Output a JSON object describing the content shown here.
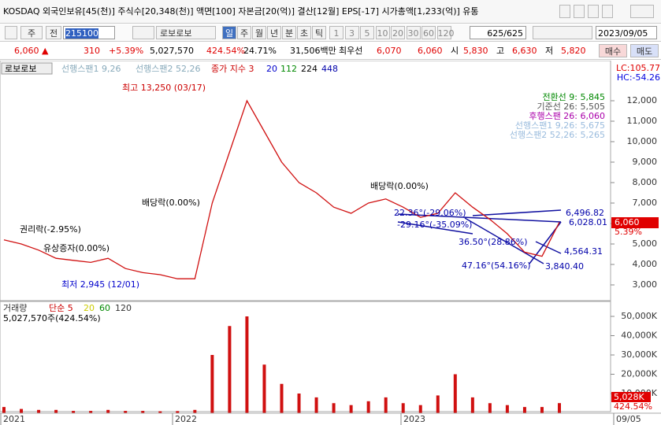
{
  "title_bar": {
    "text": "KOSDAQ 외국인보유[45(천)] 주식수[20,348(천)] 액면[100] 자본금[20(억)] 결산[12월] EPS[-17] 시가총액[1,233(억)] 유통"
  },
  "toolbar": {
    "type_select": "주",
    "prefix": "전",
    "code": "215100",
    "name": "로보로보",
    "periods": [
      "일",
      "주",
      "월",
      "년",
      "분",
      "초",
      "틱"
    ],
    "intervals": [
      "1",
      "3",
      "5",
      "10",
      "20",
      "30",
      "60",
      "120"
    ],
    "count": "625/625",
    "date": "2023/09/05"
  },
  "quote": {
    "price": "6,060 ▲",
    "change": "310",
    "change_pct": "+5.39%",
    "volume": "5,027,570",
    "volume_ratio": "424.54%",
    "turnover": "24.71%",
    "amount": "31,506백만",
    "best_label": "최우선",
    "ask": "6,070",
    "bid": "6,060",
    "open_label": "시",
    "open": "5,830",
    "high_label": "고",
    "high": "6,630",
    "low_label": "저",
    "low": "5,820",
    "buy": "매수",
    "sell": "매도"
  },
  "price_chart": {
    "legend": [
      "로보로보",
      "선행스팬1 9,26",
      "선행스팬2 52,26",
      "종가 지수 3",
      "20",
      "112",
      "224",
      "448"
    ],
    "lc": "LC:105.77",
    "hc": "HC:-54.26",
    "y_ticks": [
      "12,000",
      "11,000",
      "10,000",
      "9,000",
      "8,000",
      "7,000",
      "6,000",
      "5,000",
      "4,000",
      "3,000"
    ],
    "last_price": "6,060",
    "last_change": "5.39%",
    "annotations": [
      "최고 13,250 (03/17)",
      "배당락(0.00%)",
      "권리락(-2.95%)",
      "유상증자(0.00%)",
      "최저 2,945 (12/01)",
      "배당락(0.00%)"
    ],
    "ichimoku": [
      "전환선 9: 5,845",
      "기준선 26: 5,505",
      "후행스팬 26: 6,060",
      "선행스팬1 9,26: 5,675",
      "선행스팬2 52,26: 5,265"
    ],
    "trend_labels": [
      "6,496.82",
      "6,028.01",
      "4,564.31",
      "3,840.40",
      "36.50°(28.86%)",
      "47.16°(54.16%)",
      "-29.16°(-35.09%)",
      "22.36°(-29.06%)"
    ],
    "closes": [
      5200,
      5000,
      4700,
      4300,
      4200,
      4100,
      4300,
      3800,
      3600,
      3500,
      3300,
      3300,
      7000,
      9500,
      12000,
      10500,
      9000,
      8000,
      7500,
      6800,
      6500,
      7000,
      7200,
      6800,
      6300,
      6500,
      7500,
      6800,
      6200,
      5500,
      4600,
      4400,
      6060
    ]
  },
  "volume_chart": {
    "legend": [
      "거래량",
      "단순 5",
      "20",
      "60",
      "120"
    ],
    "summary": "5,027,570주(424.54%)",
    "y_ticks": [
      "50,000K",
      "40,000K",
      "30,000K",
      "20,000K",
      "10,000K"
    ],
    "last_volume": "5,028K",
    "last_ratio": "424.54%",
    "volumes": [
      3000,
      2000,
      1500,
      1500,
      1000,
      1000,
      1500,
      1000,
      1000,
      800,
      900,
      1500,
      30000,
      45000,
      50000,
      25000,
      15000,
      10000,
      8000,
      5000,
      4000,
      6000,
      8000,
      5000,
      4000,
      9000,
      20000,
      8000,
      5000,
      4000,
      3000,
      3000,
      5028
    ]
  },
  "x_axis": [
    "2021",
    "2022",
    "2023",
    "09/05"
  ]
}
